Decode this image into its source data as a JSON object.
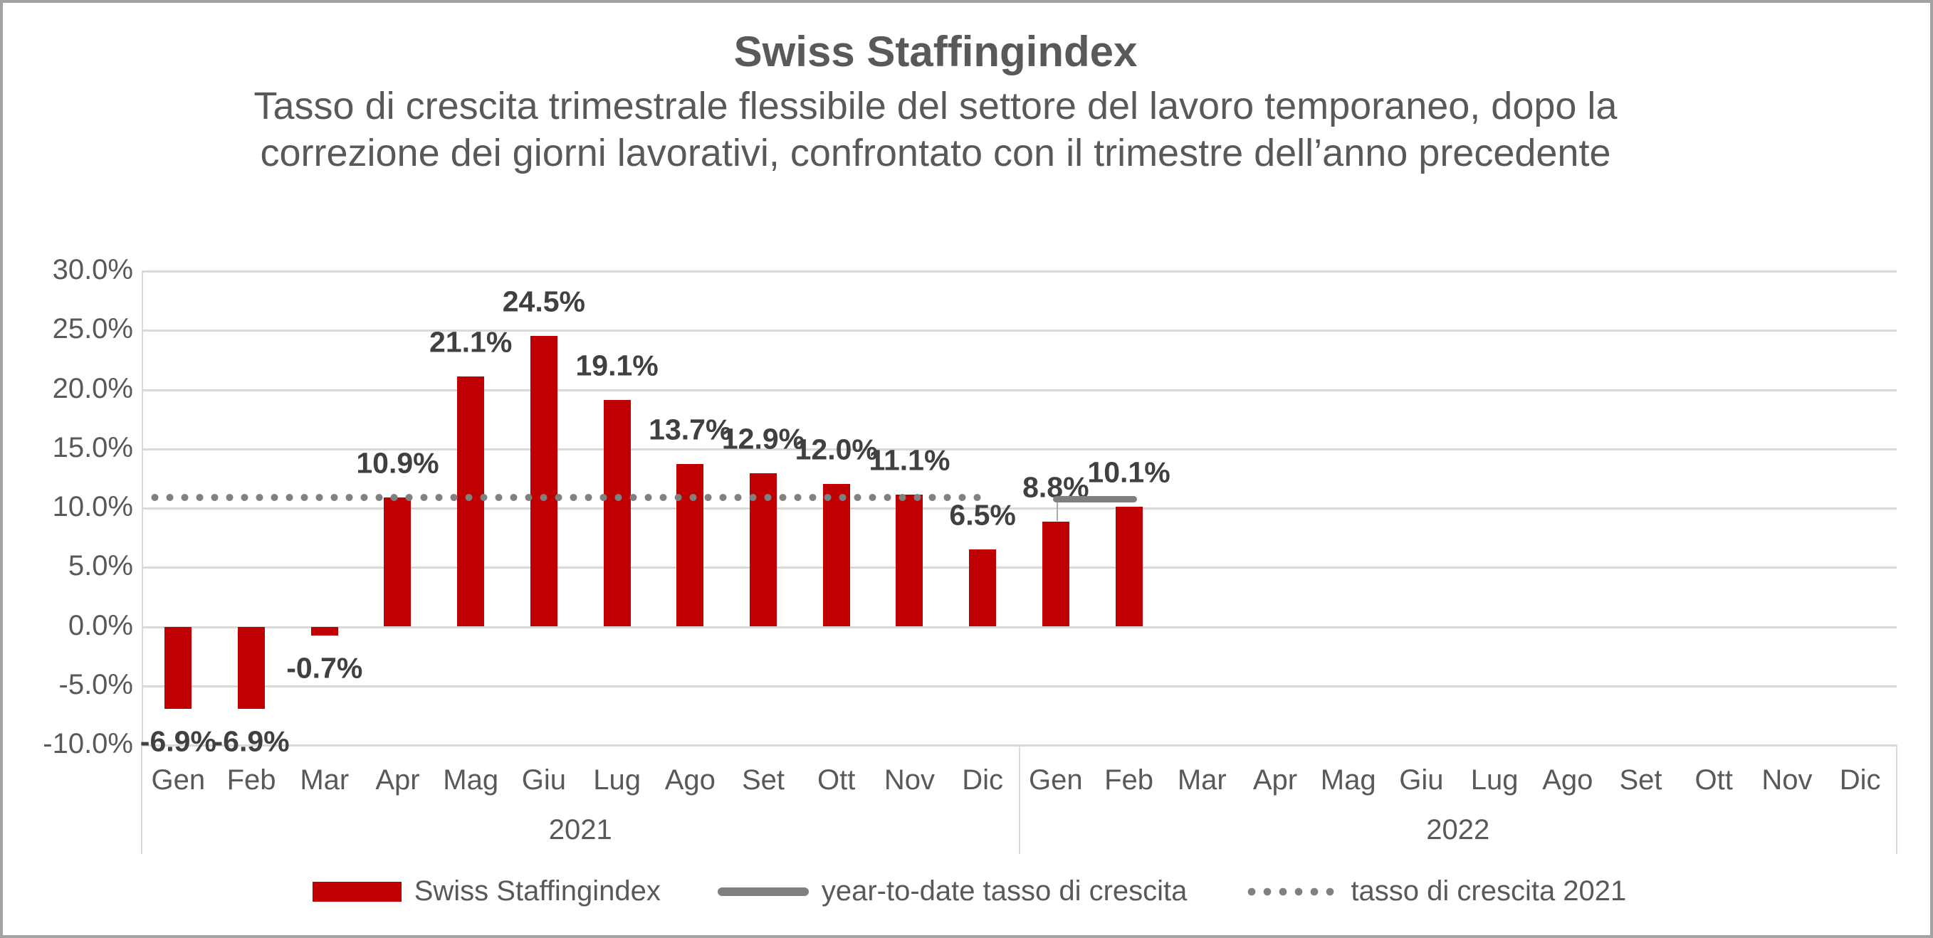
{
  "header": {
    "title": "Swiss Staffingindex",
    "subtitle_line1": "Tasso di crescita trimestrale flessibile del settore del lavoro temporaneo, dopo la",
    "subtitle_line2": "correzione dei giorni lavorativi, confrontato con il trimestre dell’anno precedente"
  },
  "colors": {
    "bar": "#C00000",
    "line_gray": "#808080",
    "grid": "#D9D9D9",
    "axis_text": "#595959",
    "data_label": "#404040",
    "leader": "#ABABAB"
  },
  "chart_data": {
    "type": "bar",
    "title": "Swiss Staffingindex",
    "ylabel": "",
    "ylim": [
      -10,
      30
    ],
    "grid": true,
    "legend_position": "bottom",
    "y_tick_labels": [
      "30.0%",
      "25.0%",
      "20.0%",
      "15.0%",
      "10.0%",
      "5.0%",
      "0.0%",
      "-5.0%",
      "-10.0%"
    ],
    "year_groups": [
      {
        "year": "2021",
        "months": [
          "Gen",
          "Feb",
          "Mar",
          "Apr",
          "Mag",
          "Giu",
          "Lug",
          "Ago",
          "Set",
          "Ott",
          "Nov",
          "Dic"
        ]
      },
      {
        "year": "2022",
        "months": [
          "Gen",
          "Feb",
          "Mar",
          "Apr",
          "Mag",
          "Giu",
          "Lug",
          "Ago",
          "Set",
          "Ott",
          "Nov",
          "Dic"
        ]
      }
    ],
    "series": [
      {
        "name": "Swiss Staffingindex",
        "type": "bar",
        "color": "#C00000",
        "values": [
          -6.9,
          -6.9,
          -0.7,
          10.9,
          21.1,
          24.5,
          19.1,
          13.7,
          12.9,
          12.0,
          11.1,
          6.5,
          8.8,
          10.1,
          null,
          null,
          null,
          null,
          null,
          null,
          null,
          null,
          null,
          null
        ],
        "labels": [
          "-6.9%",
          "-6.9%",
          "-0.7%",
          "10.9%",
          "21.1%",
          "24.5%",
          "19.1%",
          "13.7%",
          "12.9%",
          "12.0%",
          "11.1%",
          "6.5%",
          "8.8%",
          "10.1%"
        ]
      },
      {
        "name": "year-to-date tasso di crescita",
        "type": "line",
        "color": "#808080",
        "value": 10.7,
        "start_month_index": 12,
        "end_month_index": 13
      },
      {
        "name": "tasso di crescita 2021",
        "type": "dotted_line",
        "color": "#808080",
        "value": 10.9,
        "start_month_index": 0,
        "end_month_index": 11.5
      }
    ]
  },
  "legend": {
    "items": [
      {
        "marker": "bar-swatch",
        "label": "Swiss Staffingindex"
      },
      {
        "marker": "line-swatch",
        "label": "year-to-date tasso di crescita"
      },
      {
        "marker": "dotted-line-swatch",
        "label": "tasso di crescita 2021"
      }
    ]
  }
}
